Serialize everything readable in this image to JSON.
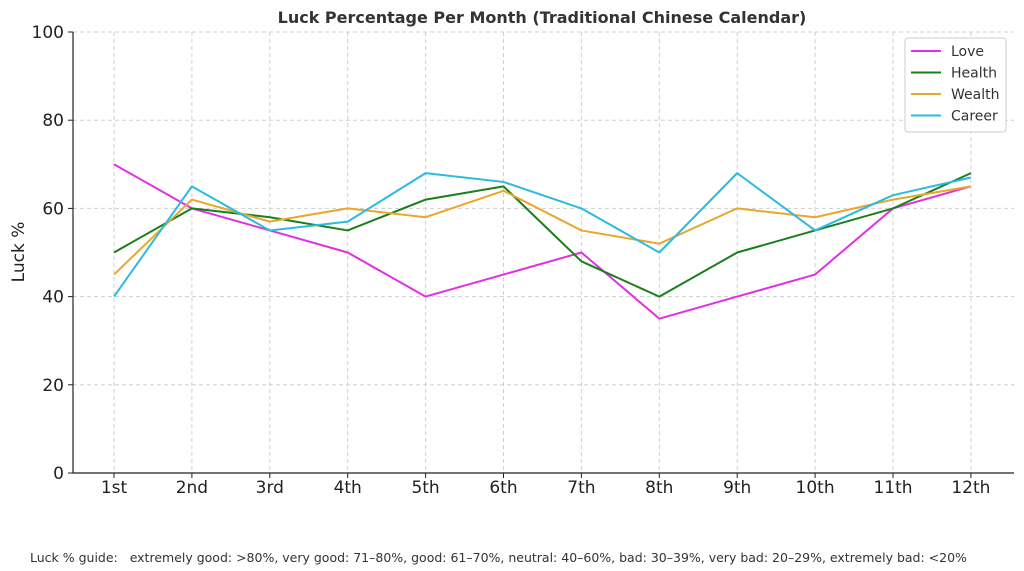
{
  "chart_data": {
    "type": "line",
    "title": "Luck Percentage Per Month (Traditional Chinese Calendar)",
    "xlabel": "",
    "ylabel": "Luck %",
    "categories": [
      "1st",
      "2nd",
      "3rd",
      "4th",
      "5th",
      "6th",
      "7th",
      "8th",
      "9th",
      "10th",
      "11th",
      "12th"
    ],
    "ylim": [
      0,
      100
    ],
    "yticks": [
      0,
      20,
      40,
      60,
      80,
      100
    ],
    "grid": true,
    "legend_position": "top-right",
    "series": [
      {
        "name": "Love",
        "color": "#e22fe2",
        "values": [
          70,
          60,
          55,
          50,
          40,
          45,
          50,
          35,
          40,
          45,
          60,
          65
        ]
      },
      {
        "name": "Health",
        "color": "#1a7f1a",
        "values": [
          50,
          60,
          58,
          55,
          62,
          65,
          48,
          40,
          50,
          55,
          60,
          68
        ]
      },
      {
        "name": "Wealth",
        "color": "#eaa62a",
        "values": [
          45,
          62,
          57,
          60,
          58,
          64,
          55,
          52,
          60,
          58,
          62,
          65
        ]
      },
      {
        "name": "Career",
        "color": "#2bbbe0",
        "values": [
          40,
          65,
          55,
          57,
          68,
          66,
          60,
          50,
          68,
          55,
          63,
          67
        ]
      }
    ]
  },
  "footnote": "Luck % guide:   extremely good: >80%, very good: 71–80%, good: 61–70%, neutral: 40–60%, bad: 30–39%, very bad: 20–29%, extremely bad: <20%"
}
